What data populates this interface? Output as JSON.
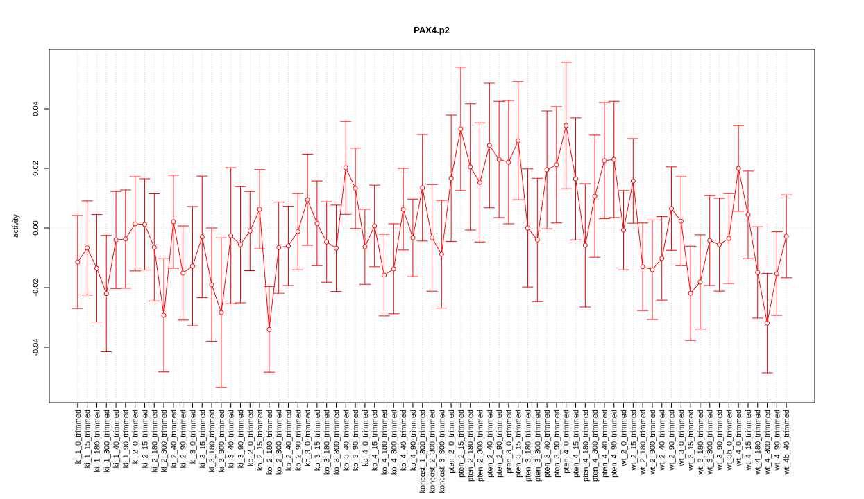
{
  "chart_data": {
    "type": "errorbar",
    "title": "PAX4.p2",
    "y_label": "activity",
    "color": "#ff0000",
    "categories": [
      "ki_1_0_trimmed",
      "ki_1_15_trimmed",
      "ki_1_180_trimmed",
      "ki_1_300_trimmed",
      "ki_1_40_trimmed",
      "ki_1_90_trimmed",
      "ki_2_0_trimmed",
      "ki_2_15_trimmed",
      "ki_2_180_trimmed",
      "ki_2_300_trimmed",
      "ki_2_40_trimmed",
      "ki_2_90_trimmed",
      "ki_3_0_trimmed",
      "ki_3_15_trimmed",
      "ki_3_180_trimmed",
      "ki_3_300_trimmed",
      "ki_3_40_trimmed",
      "ki_3_90_trimmed",
      "ko_2_0_trimmed",
      "ko_2_15_trimmed",
      "ko_2_180_trimmed",
      "ko_2_300_trimmed",
      "ko_2_40_trimmed",
      "ko_2_90_trimmed",
      "ko_3_0_trimmed",
      "ko_3_15_trimmed",
      "ko_3_180_trimmed",
      "ko_3_300_trimmed",
      "ko_3_40_trimmed",
      "ko_3_90_trimmed",
      "ko_4_0_trimmed",
      "ko_4_15_trimmed",
      "ko_4_180_trimmed",
      "ko_4_300_trimmed",
      "ko_4_40_trimmed",
      "ko_4_90_trimmed",
      "koncost_1_300_trimmed",
      "koncost_2_300_trimmed",
      "koncost_3_300_trimmed",
      "pten_2_0_trimmed",
      "pten_2_15_trimmed",
      "pten_2_180_trimmed",
      "pten_2_300_trimmed",
      "pten_2_40_trimmed",
      "pten_2_90_trimmed",
      "pten_3_0_trimmed",
      "pten_3_15_trimmed",
      "pten_3_180_trimmed",
      "pten_3_300_trimmed",
      "pten_3_40_trimmed",
      "pten_3_90_trimmed",
      "pten_4_0_trimmed",
      "pten_4_15_trimmed",
      "pten_4_180_trimmed",
      "pten_4_300_trimmed",
      "pten_4_40_trimmed",
      "pten_4_90_trimmed",
      "wt_2_0_trimmed",
      "wt_2_15_trimmed",
      "wt_2_180_trimmed",
      "wt_2_300_trimmed",
      "wt_2_40_trimmed",
      "wt_2_90_trimmed",
      "wt_3_0_trimmed",
      "wt_3_15_trimmed",
      "wt_3_180_trimmed",
      "wt_3_300_trimmed",
      "wt_3_90_trimmed",
      "wt_3b_0_trimmed",
      "wt_4_0_trimmed",
      "wt_4_15_trimmed",
      "wt_4_180_trimmed",
      "wt_4_300_trimmed",
      "wt_4_90_trimmed",
      "wt_4b_40_trimmed"
    ],
    "values": [
      -0.0114,
      -0.0067,
      -0.0135,
      -0.022,
      -0.004,
      -0.0037,
      0.0014,
      0.0012,
      -0.0065,
      -0.0293,
      0.0021,
      -0.0151,
      -0.0128,
      -0.003,
      -0.019,
      -0.0284,
      -0.0026,
      -0.0056,
      -0.001,
      0.0063,
      -0.034,
      -0.0066,
      -0.006,
      -0.0012,
      0.0095,
      0.0016,
      -0.0047,
      -0.0068,
      0.0202,
      0.0133,
      -0.0063,
      0.0007,
      -0.0158,
      -0.0137,
      0.0063,
      -0.0033,
      0.0135,
      -0.0033,
      -0.0088,
      0.0167,
      0.0333,
      0.0205,
      0.0153,
      0.0277,
      0.023,
      0.0221,
      0.0293,
      0.0,
      -0.004,
      0.0195,
      0.0212,
      0.0344,
      0.0165,
      -0.0058,
      0.0107,
      0.0226,
      0.023,
      -0.0007,
      0.0158,
      -0.013,
      -0.014,
      -0.0102,
      0.0065,
      0.0023,
      -0.0219,
      -0.0181,
      -0.0042,
      -0.0056,
      -0.0035,
      0.02,
      0.0044,
      -0.0149,
      -0.0319,
      -0.0153,
      -0.0028
    ],
    "errors": [
      0.0156,
      0.0158,
      0.018,
      0.0195,
      0.0163,
      0.0165,
      0.0158,
      0.0153,
      0.018,
      0.019,
      0.0156,
      0.0158,
      0.02,
      0.0204,
      0.019,
      0.0251,
      0.0228,
      0.0195,
      0.0133,
      0.0133,
      0.0144,
      0.0153,
      0.0133,
      0.0128,
      0.0153,
      0.0142,
      0.0135,
      0.0145,
      0.0156,
      0.0135,
      0.0126,
      0.0137,
      0.0137,
      0.0151,
      0.0137,
      0.013,
      0.0179,
      0.0179,
      0.0181,
      0.0212,
      0.0207,
      0.0212,
      0.02,
      0.0209,
      0.0195,
      0.0207,
      0.0198,
      0.0198,
      0.0207,
      0.0198,
      0.0195,
      0.0212,
      0.0205,
      0.0207,
      0.0205,
      0.0195,
      0.0195,
      0.0133,
      0.0142,
      0.0147,
      0.0167,
      0.014,
      0.014,
      0.0149,
      0.0158,
      0.0158,
      0.0151,
      0.0156,
      0.0151,
      0.0144,
      0.0147,
      0.0153,
      0.0167,
      0.014,
      0.0139
    ],
    "ylim": [
      -0.0586,
      0.06
    ],
    "yticks": [
      -0.04,
      -0.02,
      {
        "value": 0,
        "label": "0.00"
      },
      0.02,
      0.04
    ],
    "reference_line": 0,
    "grid": true
  }
}
